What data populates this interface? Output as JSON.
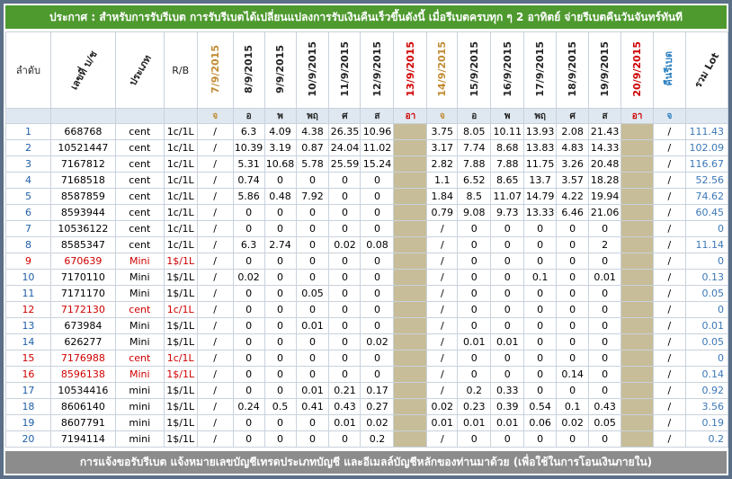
{
  "header": {
    "title": "ประกาศ : สำหรับการรับรีเบต  การรับรีเบตได้เปลี่ยนแปลงการรับเงินคืนเร็วขึ้นดังนี้   เมื่อรีเบตครบทุก ๆ 2 อาทิตย์ จ่ายรีเบตคืนวันจันทร์ทันที"
  },
  "table": {
    "columns": [
      {
        "label": "ลำดับ",
        "style": "plain"
      },
      {
        "label": "เลขที่ บ/ช",
        "style": "diag"
      },
      {
        "label": "ประเภท",
        "style": "diag"
      },
      {
        "label": "R/B",
        "style": "plain"
      },
      {
        "label": "7/9/2015",
        "day": "จ",
        "color": "#c08a30",
        "style": "vert"
      },
      {
        "label": "8/9/2015",
        "day": "อ",
        "color": "#222222",
        "style": "vert"
      },
      {
        "label": "9/9/2015",
        "day": "พ",
        "color": "#222222",
        "style": "vert"
      },
      {
        "label": "10/9/2015",
        "day": "พฤ",
        "color": "#222222",
        "style": "vert"
      },
      {
        "label": "11/9/2015",
        "day": "ศ",
        "color": "#222222",
        "style": "vert"
      },
      {
        "label": "12/9/2015",
        "day": "ส",
        "color": "#222222",
        "style": "vert"
      },
      {
        "label": "13/9/2015",
        "day": "อา",
        "color": "#d00000",
        "style": "vert",
        "blank": true
      },
      {
        "label": "14/9/2015",
        "day": "จ",
        "color": "#c08a30",
        "style": "vert"
      },
      {
        "label": "15/9/2015",
        "day": "อ",
        "color": "#222222",
        "style": "vert"
      },
      {
        "label": "16/9/2015",
        "day": "พ",
        "color": "#222222",
        "style": "vert"
      },
      {
        "label": "17/9/2015",
        "day": "พฤ",
        "color": "#222222",
        "style": "vert"
      },
      {
        "label": "18/9/2015",
        "day": "ศ",
        "color": "#222222",
        "style": "vert"
      },
      {
        "label": "19/9/2015",
        "day": "ส",
        "color": "#222222",
        "style": "vert"
      },
      {
        "label": "20/9/2015",
        "day": "อา",
        "color": "#d00000",
        "style": "vert",
        "blank": true
      },
      {
        "label": "คืนรีเบต",
        "day": "จ",
        "color": "#2a7fc0",
        "style": "vert"
      },
      {
        "label": "รวม Lot",
        "style": "diag"
      }
    ],
    "rows": [
      {
        "cells": [
          "1",
          "668768",
          "cent",
          "1c/1L",
          "/",
          "6.3",
          "4.09",
          "4.38",
          "26.35",
          "10.96",
          "3.75",
          "8.05",
          "10.11",
          "13.93",
          "2.08",
          "21.43",
          "/",
          "111.43"
        ]
      },
      {
        "cells": [
          "2",
          "10521447",
          "cent",
          "1c/1L",
          "/",
          "10.39",
          "3.19",
          "0.87",
          "24.04",
          "11.02",
          "3.17",
          "7.74",
          "8.68",
          "13.83",
          "4.83",
          "14.33",
          "/",
          "102.09"
        ]
      },
      {
        "cells": [
          "3",
          "7167812",
          "cent",
          "1c/1L",
          "/",
          "5.31",
          "10.68",
          "5.78",
          "25.59",
          "15.24",
          "2.82",
          "7.88",
          "7.88",
          "11.75",
          "3.26",
          "20.48",
          "/",
          "116.67"
        ]
      },
      {
        "cells": [
          "4",
          "7168518",
          "cent",
          "1c/1L",
          "/",
          "0.74",
          "0",
          "0",
          "0",
          "0",
          "1.1",
          "6.52",
          "8.65",
          "13.7",
          "3.57",
          "18.28",
          "/",
          "52.56"
        ]
      },
      {
        "cells": [
          "5",
          "8587859",
          "cent",
          "1c/1L",
          "/",
          "5.86",
          "0.48",
          "7.92",
          "0",
          "0",
          "1.84",
          "8.5",
          "11.07",
          "14.79",
          "4.22",
          "19.94",
          "/",
          "74.62"
        ]
      },
      {
        "cells": [
          "6",
          "8593944",
          "cent",
          "1c/1L",
          "/",
          "0",
          "0",
          "0",
          "0",
          "0",
          "0.79",
          "9.08",
          "9.73",
          "13.33",
          "6.46",
          "21.06",
          "/",
          "60.45"
        ]
      },
      {
        "cells": [
          "7",
          "10536122",
          "cent",
          "1c/1L",
          "/",
          "0",
          "0",
          "0",
          "0",
          "0",
          "/",
          "0",
          "0",
          "0",
          "0",
          "0",
          "/",
          "0"
        ]
      },
      {
        "cells": [
          "8",
          "8585347",
          "cent",
          "1c/1L",
          "/",
          "6.3",
          "2.74",
          "0",
          "0.02",
          "0.08",
          "/",
          "0",
          "0",
          "0",
          "0",
          "2",
          "/",
          "11.14"
        ]
      },
      {
        "cells": [
          "9",
          "670639",
          "Mini",
          "1$/1L",
          "/",
          "0",
          "0",
          "0",
          "0",
          "0",
          "/",
          "0",
          "0",
          "0",
          "0",
          "0",
          "/",
          "0"
        ],
        "red": true
      },
      {
        "cells": [
          "10",
          "7170110",
          "Mini",
          "1$/1L",
          "/",
          "0.02",
          "0",
          "0",
          "0",
          "0",
          "/",
          "0",
          "0",
          "0.1",
          "0",
          "0.01",
          "/",
          "0.13"
        ]
      },
      {
        "cells": [
          "11",
          "7171170",
          "Mini",
          "1$/1L",
          "/",
          "0",
          "0",
          "0.05",
          "0",
          "0",
          "/",
          "0",
          "0",
          "0",
          "0",
          "0",
          "/",
          "0.05"
        ]
      },
      {
        "cells": [
          "12",
          "7172130",
          "cent",
          "1c/1L",
          "/",
          "0",
          "0",
          "0",
          "0",
          "0",
          "/",
          "0",
          "0",
          "0",
          "0",
          "0",
          "/",
          "0"
        ],
        "red": true
      },
      {
        "cells": [
          "13",
          "673984",
          "Mini",
          "1$/1L",
          "/",
          "0",
          "0",
          "0.01",
          "0",
          "0",
          "/",
          "0",
          "0",
          "0",
          "0",
          "0",
          "/",
          "0.01"
        ]
      },
      {
        "cells": [
          "14",
          "626277",
          "Mini",
          "1$/1L",
          "/",
          "0",
          "0",
          "0",
          "0",
          "0.02",
          "/",
          "0.01",
          "0.01",
          "0",
          "0",
          "0",
          "/",
          "0.05"
        ]
      },
      {
        "cells": [
          "15",
          "7176988",
          "cent",
          "1c/1L",
          "/",
          "0",
          "0",
          "0",
          "0",
          "0",
          "/",
          "0",
          "0",
          "0",
          "0",
          "0",
          "/",
          "0"
        ],
        "red": true
      },
      {
        "cells": [
          "16",
          "8596138",
          "Mini",
          "1$/1L",
          "/",
          "0",
          "0",
          "0",
          "0",
          "0",
          "/",
          "0",
          "0",
          "0",
          "0.14",
          "0",
          "/",
          "0.14"
        ],
        "red": true
      },
      {
        "cells": [
          "17",
          "10534416",
          "mini",
          "1$/1L",
          "/",
          "0",
          "0",
          "0.01",
          "0.21",
          "0.17",
          "/",
          "0.2",
          "0.33",
          "0",
          "0",
          "0",
          "/",
          "0.92"
        ]
      },
      {
        "cells": [
          "18",
          "8606140",
          "mini",
          "1$/1L",
          "/",
          "0.24",
          "0.5",
          "0.41",
          "0.43",
          "0.27",
          "0.02",
          "0.23",
          "0.39",
          "0.54",
          "0.1",
          "0.43",
          "/",
          "3.56"
        ]
      },
      {
        "cells": [
          "19",
          "8607791",
          "mini",
          "1$/1L",
          "/",
          "0",
          "0",
          "0",
          "0.01",
          "0.02",
          "0.01",
          "0.01",
          "0.01",
          "0.06",
          "0.02",
          "0.05",
          "/",
          "0.19"
        ]
      },
      {
        "cells": [
          "20",
          "7194114",
          "mini",
          "1$/1L",
          "/",
          "0",
          "0",
          "0",
          "0",
          "0.2",
          "/",
          "0",
          "0",
          "0",
          "0",
          "0",
          "/",
          "0.2"
        ]
      }
    ]
  },
  "footer": {
    "text": "การแจ้งขอรับรีเบต  แจ้งหมายเลขบัญชีเทรดประเภทบัญชี และอีเมลล์บัญชีหลักของท่านมาด้วย   (เพื่อใช้ในการโอนเงินภายใน)"
  }
}
